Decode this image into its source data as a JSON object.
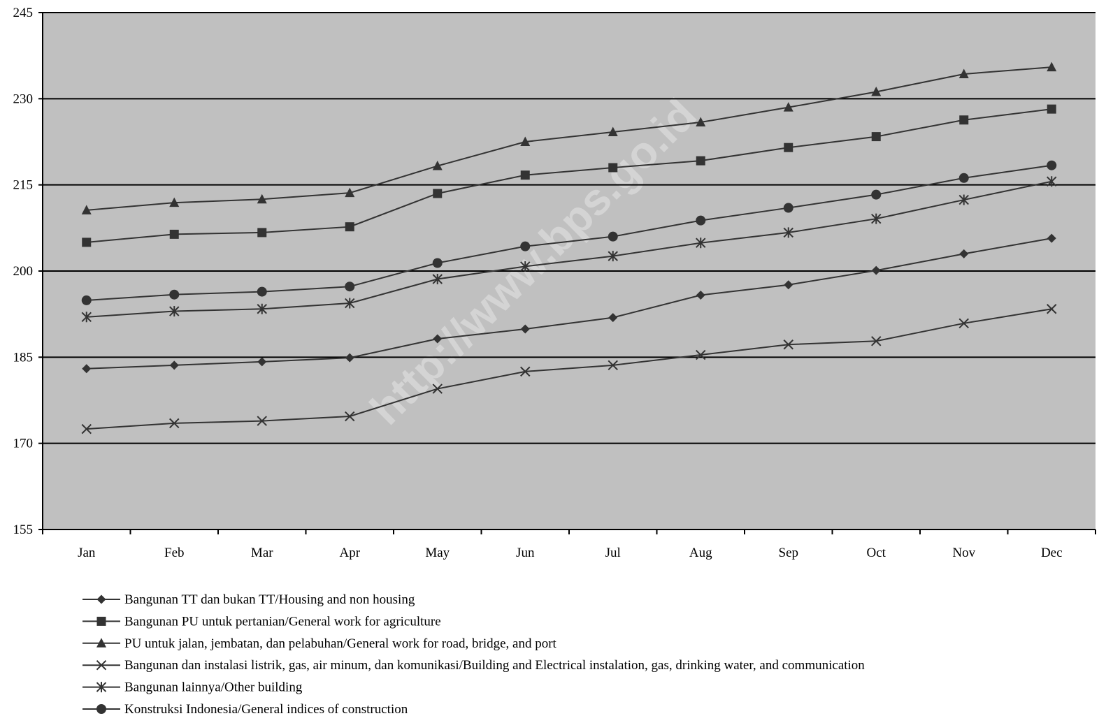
{
  "chart_data": {
    "type": "line",
    "watermark": "http://www.bps.go.id",
    "title": "",
    "xlabel": "",
    "ylabel": "",
    "categories": [
      "Jan",
      "Feb",
      "Mar",
      "Apr",
      "May",
      "Jun",
      "Jul",
      "Aug",
      "Sep",
      "Oct",
      "Nov",
      "Dec"
    ],
    "ylim": [
      155,
      245
    ],
    "yticks": [
      "155",
      "170",
      "185",
      "200",
      "215",
      "230",
      "245"
    ],
    "grid": true,
    "legend_position": "bottom",
    "colors": {
      "plot_background": "#c0c0c0",
      "line": "#333333",
      "grid": "#000000"
    },
    "series": [
      {
        "name": "Bangunan TT dan bukan TT/Housing and non housing",
        "marker": "diamond",
        "values": [
          183.0,
          183.6,
          184.2,
          184.9,
          188.2,
          189.9,
          191.9,
          195.8,
          197.6,
          200.1,
          203.0,
          205.7
        ]
      },
      {
        "name": "Bangunan PU untuk pertanian/General work for agriculture",
        "marker": "square",
        "values": [
          205.0,
          206.4,
          206.7,
          207.7,
          213.5,
          216.7,
          218.0,
          219.2,
          221.5,
          223.4,
          226.3,
          228.2
        ]
      },
      {
        "name": "PU untuk  jalan, jembatan, dan pelabuhan/General work for road, bridge, and port",
        "marker": "triangle",
        "values": [
          210.6,
          211.9,
          212.5,
          213.6,
          218.3,
          222.5,
          224.2,
          225.9,
          228.5,
          231.2,
          234.3,
          235.5
        ]
      },
      {
        "name": "Bangunan dan instalasi listrik, gas, air minum, dan komunikasi/Building and Electrical instalation, gas, drinking water, and communication",
        "marker": "x",
        "values": [
          172.5,
          173.5,
          173.9,
          174.7,
          179.5,
          182.5,
          183.6,
          185.4,
          187.2,
          187.8,
          190.9,
          193.4
        ]
      },
      {
        "name": "Bangunan lainnya/Other building",
        "marker": "star",
        "values": [
          192.0,
          193.0,
          193.4,
          194.4,
          198.6,
          200.8,
          202.6,
          204.9,
          206.7,
          209.1,
          212.4,
          215.6
        ]
      },
      {
        "name": "Konstruksi Indonesia/General indices of construction",
        "marker": "circle",
        "values": [
          194.9,
          195.9,
          196.4,
          197.3,
          201.4,
          204.3,
          206.0,
          208.8,
          211.0,
          213.3,
          216.2,
          218.4
        ]
      }
    ]
  }
}
